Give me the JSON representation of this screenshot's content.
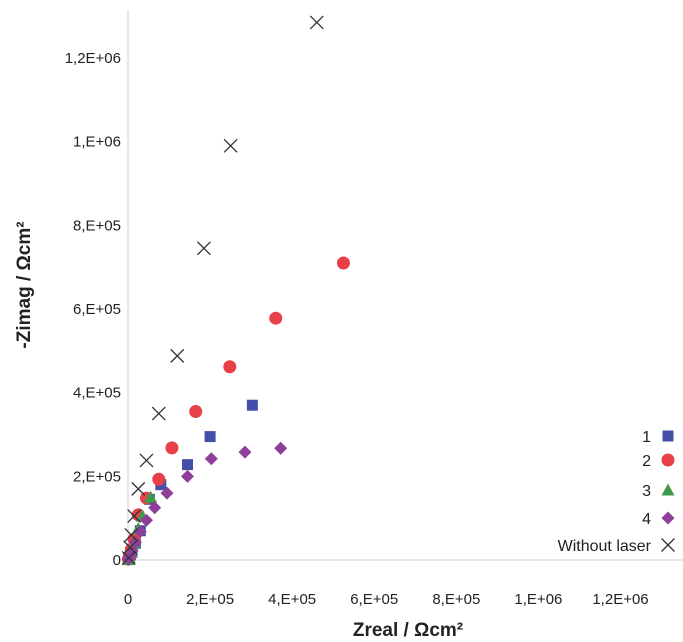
{
  "chart_data": {
    "type": "scatter",
    "title": "",
    "xlabel": "Zreal / Ωcm²",
    "ylabel": "-Zimag / Ωcm²",
    "xlim": [
      0,
      1320000
    ],
    "ylim": [
      0,
      1320000
    ],
    "xticks": [
      {
        "value": 0,
        "label": "0"
      },
      {
        "value": 200000,
        "label": "2,E+05"
      },
      {
        "value": 400000,
        "label": "4,E+05"
      },
      {
        "value": 600000,
        "label": "6,E+05"
      },
      {
        "value": 800000,
        "label": "8,E+05"
      },
      {
        "value": 1000000,
        "label": "1,E+06"
      },
      {
        "value": 1200000,
        "label": "1,2E+06"
      }
    ],
    "yticks": [
      {
        "value": 0,
        "label": "0"
      },
      {
        "value": 200000,
        "label": "2,E+05"
      },
      {
        "value": 400000,
        "label": "4,E+05"
      },
      {
        "value": 600000,
        "label": "6,E+05"
      },
      {
        "value": 800000,
        "label": "8,E+05"
      },
      {
        "value": 1000000,
        "label": "1,E+06"
      },
      {
        "value": 1200000,
        "label": "1,2E+06"
      }
    ],
    "grid": false,
    "legend_position": "bottom-right",
    "series": [
      {
        "name": "1",
        "marker": "square",
        "color": "#4350a8",
        "points": [
          [
            1000,
            2000
          ],
          [
            3000,
            5000
          ],
          [
            6000,
            12000
          ],
          [
            10000,
            22000
          ],
          [
            18000,
            40000
          ],
          [
            30000,
            70000
          ],
          [
            52000,
            145000
          ],
          [
            80000,
            180000
          ],
          [
            145000,
            228000
          ],
          [
            200000,
            295000
          ],
          [
            303000,
            370000
          ]
        ]
      },
      {
        "name": "2",
        "marker": "circle",
        "color": "#e84048",
        "points": [
          [
            1000,
            2000
          ],
          [
            4000,
            10000
          ],
          [
            8000,
            25000
          ],
          [
            15000,
            50000
          ],
          [
            25000,
            108000
          ],
          [
            45000,
            148000
          ],
          [
            75000,
            193000
          ],
          [
            107000,
            268000
          ],
          [
            165000,
            355000
          ],
          [
            248000,
            462000
          ],
          [
            360000,
            578000
          ],
          [
            525000,
            710000
          ]
        ]
      },
      {
        "name": "3",
        "marker": "triangle",
        "color": "#3e9a4a",
        "points": [
          [
            1000,
            1000
          ],
          [
            3000,
            6000
          ],
          [
            8000,
            18000
          ],
          [
            15000,
            40000
          ],
          [
            25000,
            75000
          ],
          [
            35000,
            105000
          ],
          [
            55000,
            150000
          ]
        ]
      },
      {
        "name": "4",
        "marker": "diamond",
        "color": "#8e3f9a",
        "points": [
          [
            1000,
            2000
          ],
          [
            5000,
            10000
          ],
          [
            10000,
            22000
          ],
          [
            18000,
            42000
          ],
          [
            30000,
            68000
          ],
          [
            45000,
            95000
          ],
          [
            65000,
            125000
          ],
          [
            95000,
            160000
          ],
          [
            145000,
            200000
          ],
          [
            203000,
            242000
          ],
          [
            285000,
            258000
          ],
          [
            372000,
            267000
          ]
        ]
      },
      {
        "name": "Without laser",
        "marker": "x",
        "color": "#333333",
        "points": [
          [
            2000,
            5000
          ],
          [
            5000,
            30000
          ],
          [
            8000,
            60000
          ],
          [
            15000,
            105000
          ],
          [
            25000,
            170000
          ],
          [
            45000,
            238000
          ],
          [
            75000,
            350000
          ],
          [
            120000,
            488000
          ],
          [
            185000,
            745000
          ],
          [
            250000,
            990000
          ],
          [
            460000,
            1285000
          ]
        ]
      }
    ]
  }
}
